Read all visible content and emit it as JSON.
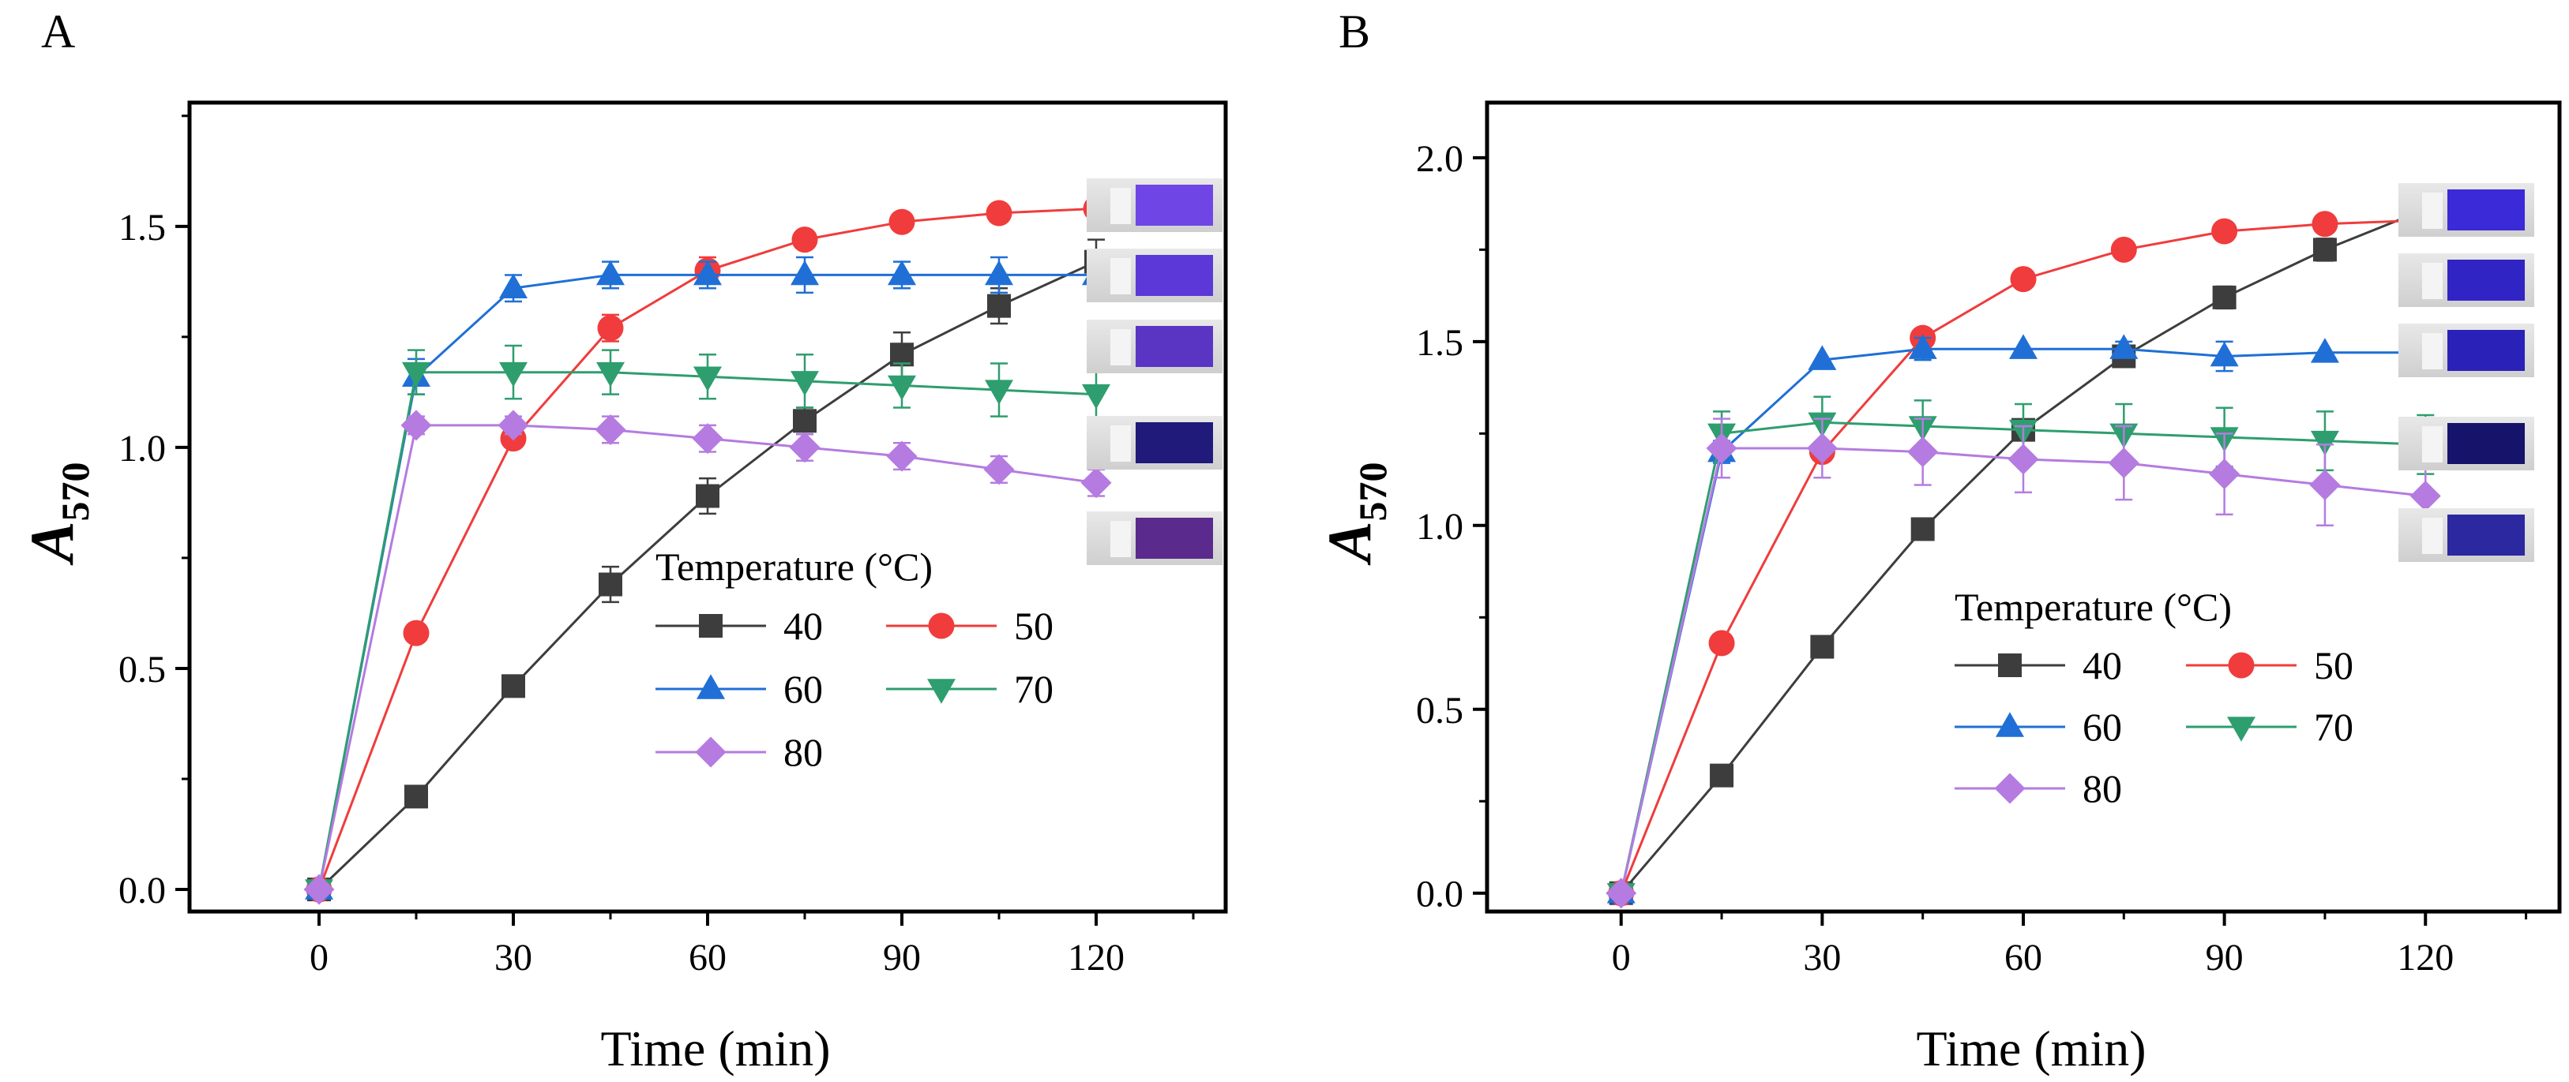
{
  "chart_data": [
    {
      "panel": "A",
      "type": "line",
      "xlabel": "Time (min)",
      "ylabel_main": "A",
      "ylabel_sub": "570",
      "xlim": [
        -20,
        140
      ],
      "ylim": [
        -0.05,
        1.78
      ],
      "xticks": [
        0,
        30,
        60,
        90,
        120
      ],
      "yticks": [
        0.0,
        0.5,
        1.0,
        1.5
      ],
      "ytick_labels": [
        "0.0",
        "0.5",
        "1.0",
        "1.5"
      ],
      "x": [
        0,
        15,
        30,
        45,
        60,
        75,
        90,
        105,
        120
      ],
      "legend_title": "Temperature (°C)",
      "series": [
        {
          "name": "40",
          "marker": "square",
          "color": "#3d3d3d",
          "values": [
            0.0,
            0.21,
            0.46,
            0.69,
            0.89,
            1.06,
            1.21,
            1.32,
            1.42
          ],
          "errors": [
            0.0,
            0.0,
            0.0,
            0.04,
            0.04,
            0.03,
            0.05,
            0.04,
            0.05
          ]
        },
        {
          "name": "50",
          "marker": "circle",
          "color": "#f03c3c",
          "values": [
            0.0,
            0.58,
            1.02,
            1.27,
            1.4,
            1.47,
            1.51,
            1.53,
            1.54
          ],
          "errors": [
            0.0,
            0.0,
            0.0,
            0.03,
            0.03,
            0.0,
            0.0,
            0.0,
            0.0
          ]
        },
        {
          "name": "60",
          "marker": "triangle-up",
          "color": "#1f6fd6",
          "values": [
            0.0,
            1.16,
            1.36,
            1.39,
            1.39,
            1.39,
            1.39,
            1.39,
            1.39
          ],
          "errors": [
            0.0,
            0.04,
            0.03,
            0.03,
            0.03,
            0.04,
            0.03,
            0.04,
            0.05
          ]
        },
        {
          "name": "70",
          "marker": "triangle-down",
          "color": "#2e9e6e",
          "values": [
            0.0,
            1.17,
            1.17,
            1.17,
            1.16,
            1.15,
            1.14,
            1.13,
            1.12
          ],
          "errors": [
            0.0,
            0.05,
            0.06,
            0.05,
            0.05,
            0.06,
            0.05,
            0.06,
            0.06
          ]
        },
        {
          "name": "80",
          "marker": "diamond",
          "color": "#b57be0",
          "values": [
            0.0,
            1.05,
            1.05,
            1.04,
            1.02,
            1.0,
            0.98,
            0.95,
            0.92
          ],
          "errors": [
            0.0,
            0.02,
            0.02,
            0.03,
            0.03,
            0.03,
            0.03,
            0.03,
            0.03
          ]
        }
      ]
    },
    {
      "panel": "B",
      "type": "line",
      "xlabel": "Time (min)",
      "ylabel_main": "A",
      "ylabel_sub": "570",
      "xlim": [
        -20,
        140
      ],
      "ylim": [
        -0.05,
        2.15
      ],
      "xticks": [
        0,
        30,
        60,
        90,
        120
      ],
      "yticks": [
        0.0,
        0.5,
        1.0,
        1.5,
        2.0
      ],
      "ytick_labels": [
        "0.0",
        "0.5",
        "1.0",
        "1.5",
        "2.0"
      ],
      "x": [
        0,
        15,
        30,
        45,
        60,
        75,
        90,
        105,
        120
      ],
      "legend_title": "Temperature (°C)",
      "series": [
        {
          "name": "40",
          "marker": "square",
          "color": "#3d3d3d",
          "values": [
            0.0,
            0.32,
            0.67,
            0.99,
            1.26,
            1.46,
            1.62,
            1.75,
            1.86
          ],
          "errors": [
            0.0,
            0.0,
            0.0,
            0.0,
            0.0,
            0.02,
            0.03,
            0.03,
            0.0
          ]
        },
        {
          "name": "50",
          "marker": "circle",
          "color": "#f03c3c",
          "values": [
            0.0,
            0.68,
            1.2,
            1.51,
            1.67,
            1.75,
            1.8,
            1.82,
            1.83
          ],
          "errors": [
            0.0,
            0.0,
            0.0,
            0.0,
            0.0,
            0.0,
            0.0,
            0.0,
            0.0
          ]
        },
        {
          "name": "60",
          "marker": "triangle-up",
          "color": "#1f6fd6",
          "values": [
            0.0,
            1.2,
            1.45,
            1.48,
            1.48,
            1.48,
            1.46,
            1.47,
            1.47
          ],
          "errors": [
            0.0,
            0.03,
            0.0,
            0.03,
            0.0,
            0.02,
            0.04,
            0.0,
            0.0
          ]
        },
        {
          "name": "70",
          "marker": "triangle-down",
          "color": "#2e9e6e",
          "values": [
            0.0,
            1.25,
            1.28,
            1.27,
            1.26,
            1.25,
            1.24,
            1.23,
            1.22
          ],
          "errors": [
            0.0,
            0.06,
            0.07,
            0.07,
            0.07,
            0.08,
            0.08,
            0.08,
            0.08
          ]
        },
        {
          "name": "80",
          "marker": "diamond",
          "color": "#b57be0",
          "values": [
            0.0,
            1.21,
            1.21,
            1.2,
            1.18,
            1.17,
            1.14,
            1.11,
            1.08
          ],
          "errors": [
            0.0,
            0.08,
            0.08,
            0.09,
            0.09,
            0.1,
            0.11,
            0.11,
            0.11
          ]
        }
      ]
    }
  ]
}
